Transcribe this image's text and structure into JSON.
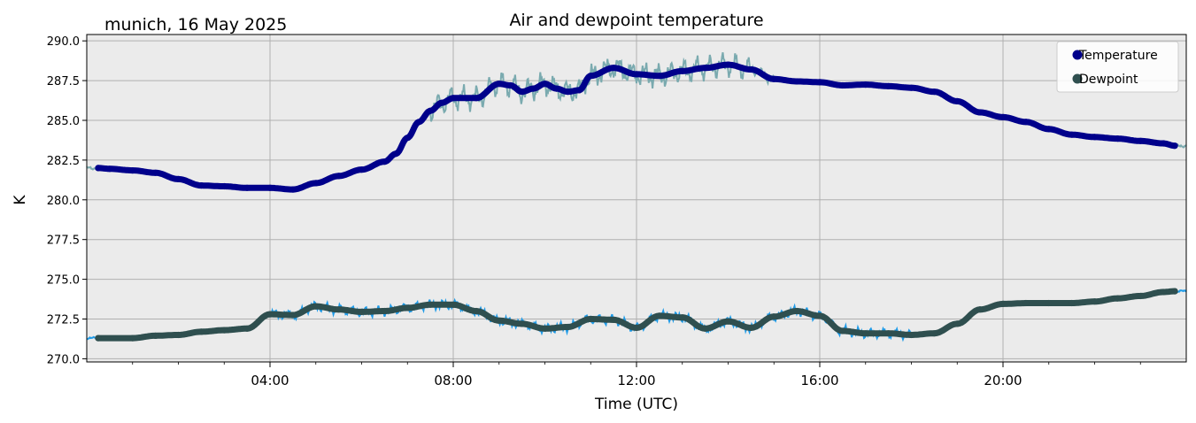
{
  "chart_data": {
    "type": "line",
    "title": "Air and dewpoint temperature",
    "subtitle": "munich, 16 May 2025",
    "xlabel": "Time (UTC)",
    "ylabel": "K",
    "xlim": [
      "00:00",
      "24:00"
    ],
    "ylim": [
      269.8,
      290.4
    ],
    "yticks": [
      "270.0",
      "272.5",
      "275.0",
      "277.5",
      "280.0",
      "282.5",
      "285.0",
      "287.5",
      "290.0"
    ],
    "xticks": [
      "04:00",
      "08:00",
      "12:00",
      "16:00",
      "20:00"
    ],
    "grid": true,
    "legend": {
      "placement": "top-right",
      "entries": [
        "Temperature",
        "Dewpoint"
      ]
    },
    "colors": {
      "temperature_smooth": "#00008b",
      "temperature_raw": "#7aaaaf",
      "dewpoint_smooth": "#2f4f4f",
      "dewpoint_raw": "#1e9be8",
      "plot_background": "#ebebeb",
      "grid": "#b0b0b0"
    },
    "series": [
      {
        "name": "Temperature",
        "x": [
          "00:15",
          "00:30",
          "01:00",
          "01:30",
          "02:00",
          "02:30",
          "03:00",
          "03:30",
          "04:00",
          "04:30",
          "05:00",
          "05:30",
          "06:00",
          "06:30",
          "06:45",
          "07:00",
          "07:15",
          "07:30",
          "07:45",
          "08:00",
          "08:30",
          "09:00",
          "09:15",
          "09:30",
          "09:45",
          "10:00",
          "10:15",
          "10:30",
          "10:45",
          "11:00",
          "11:30",
          "12:00",
          "12:30",
          "13:00",
          "13:30",
          "14:00",
          "14:30",
          "15:00",
          "15:30",
          "16:00",
          "16:30",
          "17:00",
          "17:30",
          "18:00",
          "18:30",
          "19:00",
          "19:30",
          "20:00",
          "20:30",
          "21:00",
          "21:30",
          "22:00",
          "22:30",
          "23:00",
          "23:30",
          "23:45"
        ],
        "values": [
          282.0,
          281.95,
          281.85,
          281.7,
          281.3,
          280.9,
          280.85,
          280.75,
          280.75,
          280.65,
          281.05,
          281.5,
          281.9,
          282.4,
          282.9,
          283.9,
          284.9,
          285.6,
          286.1,
          286.4,
          286.4,
          287.3,
          287.2,
          286.8,
          287.0,
          287.3,
          287.0,
          286.8,
          286.9,
          287.8,
          288.3,
          287.9,
          287.8,
          288.1,
          288.3,
          288.5,
          288.2,
          287.6,
          287.45,
          287.4,
          287.2,
          287.25,
          287.15,
          287.05,
          286.8,
          286.2,
          285.5,
          285.2,
          284.9,
          284.45,
          284.1,
          283.95,
          283.85,
          283.7,
          283.55,
          283.4
        ]
      },
      {
        "name": "Dewpoint",
        "x": [
          "00:15",
          "01:00",
          "01:30",
          "02:00",
          "02:30",
          "03:00",
          "03:30",
          "04:00",
          "04:30",
          "05:00",
          "05:30",
          "06:00",
          "06:30",
          "07:00",
          "07:30",
          "08:00",
          "08:30",
          "09:00",
          "09:30",
          "10:00",
          "10:30",
          "11:00",
          "11:30",
          "12:00",
          "12:30",
          "13:00",
          "13:30",
          "14:00",
          "14:30",
          "15:00",
          "15:30",
          "16:00",
          "16:30",
          "17:00",
          "17:30",
          "18:00",
          "18:30",
          "19:00",
          "19:30",
          "20:00",
          "20:30",
          "21:00",
          "21:30",
          "22:00",
          "22:30",
          "23:00",
          "23:30",
          "23:45"
        ],
        "values": [
          271.3,
          271.3,
          271.45,
          271.5,
          271.7,
          271.8,
          271.9,
          272.8,
          272.75,
          273.3,
          273.1,
          272.95,
          273.0,
          273.2,
          273.4,
          273.4,
          273.0,
          272.4,
          272.2,
          271.9,
          272.0,
          272.5,
          272.45,
          271.95,
          272.7,
          272.6,
          271.9,
          272.35,
          271.95,
          272.65,
          273.0,
          272.7,
          271.75,
          271.6,
          271.6,
          271.5,
          271.6,
          272.2,
          273.1,
          273.45,
          273.5,
          273.5,
          273.5,
          273.6,
          273.8,
          273.95,
          274.2,
          274.25
        ]
      }
    ]
  }
}
